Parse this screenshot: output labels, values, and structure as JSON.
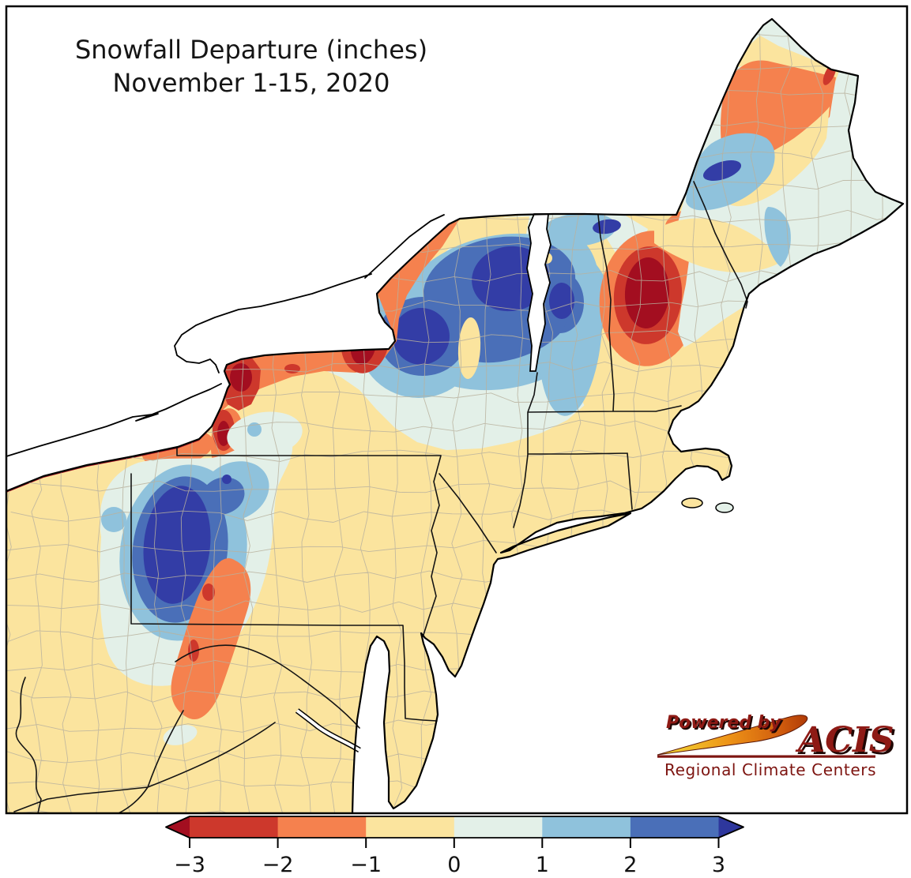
{
  "figure": {
    "title": {
      "line1": "Snowfall Departure (inches)",
      "line2": "November 1-15, 2020"
    }
  },
  "colorbar": {
    "tick_labels": [
      "−3",
      "−2",
      "−1",
      "0",
      "1",
      "2",
      "3"
    ],
    "segment_colors": [
      "#cd382c",
      "#f5814e",
      "#fbe49e",
      "#e3f0e8",
      "#8fc2dc",
      "#4a6fb8"
    ],
    "under_range_color": "#a30e20",
    "over_range_color": "#2e379d"
  },
  "map_palette": {
    "below_neg3": "#a30e20",
    "neg3_to_neg2": "#cd382c",
    "neg2_to_neg1": "#f5814e",
    "neg1_to_0": "#fbe49e",
    "0_to_1": "#e3f0e8",
    "1_to_2": "#8fc2dc",
    "2_to_3": "#4a6fb8",
    "above_3": "#333da6",
    "water_no_data": "#ffffff",
    "county_line": "#b8b29e",
    "state_line": "#141414"
  },
  "logo": {
    "powered_by": "Powered by",
    "name": "ACIS",
    "subtitle": "Regional Climate Centers"
  },
  "chart_data": {
    "type": "heatmap",
    "subtype": "filled-contour-map",
    "title": "Snowfall Departure (inches) November 1-15, 2020",
    "units": "inches",
    "region_shown": "Northeastern United States",
    "scale_ticks": [
      -3,
      -2,
      -1,
      0,
      1,
      2,
      3
    ],
    "scale_range_shown": [
      -3,
      3
    ],
    "features": [
      {
        "area": "central New York (Tug Hill / western Adirondacks)",
        "departure_in": "greater than +3"
      },
      {
        "area": "northwestern Pennsylvania",
        "departure_in": "greater than +3"
      },
      {
        "area": "western Maine mountains",
        "departure_in": "+2 to +3"
      },
      {
        "area": "Vermont / New Hampshire border (White Mountains)",
        "departure_in": "less than -3"
      },
      {
        "area": "Lake Erie and Lake Ontario shorelines of western New York",
        "departure_in": "-2 to less than -3"
      },
      {
        "area": "central Pennsylvania ridge",
        "departure_in": "-1 to -2"
      },
      {
        "area": "northern Maine",
        "departure_in": "-1 to -2"
      },
      {
        "area": "most remaining land areas",
        "departure_in": "0 to -1"
      }
    ]
  }
}
